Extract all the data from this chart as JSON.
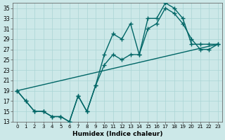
{
  "title": "",
  "xlabel": "Humidex (Indice chaleur)",
  "ylabel": "",
  "background_color": "#cce8e8",
  "grid_color": "#aad4d4",
  "line_color": "#006666",
  "xlim": [
    -0.5,
    23.5
  ],
  "ylim": [
    13,
    36
  ],
  "xticks": [
    0,
    1,
    2,
    3,
    4,
    5,
    6,
    7,
    8,
    9,
    10,
    11,
    12,
    13,
    14,
    15,
    16,
    17,
    18,
    19,
    20,
    21,
    22,
    23
  ],
  "yticks": [
    13,
    15,
    17,
    19,
    21,
    23,
    25,
    27,
    29,
    31,
    33,
    35
  ],
  "line1_x": [
    0,
    1,
    2,
    3,
    4,
    5,
    6,
    7,
    8,
    9,
    10,
    11,
    12,
    13,
    14,
    15,
    16,
    17,
    18,
    19,
    20,
    21,
    22,
    23
  ],
  "line1_y": [
    19,
    17,
    15,
    15,
    14,
    14,
    13,
    18,
    15,
    20,
    26,
    30,
    29,
    32,
    26,
    33,
    33,
    36,
    35,
    33,
    28,
    28,
    28,
    28
  ],
  "line2_x": [
    0,
    1,
    2,
    3,
    4,
    5,
    6,
    7,
    8,
    9,
    10,
    11,
    12,
    13,
    14,
    15,
    16,
    17,
    18,
    19,
    20,
    21,
    22,
    23
  ],
  "line2_y": [
    19,
    17,
    15,
    15,
    14,
    14,
    13,
    18,
    15,
    20,
    24,
    26,
    25,
    26,
    26,
    31,
    32,
    35,
    34,
    32,
    29,
    27,
    27,
    28
  ],
  "line3_x": [
    0,
    23
  ],
  "line3_y": [
    19,
    28
  ]
}
